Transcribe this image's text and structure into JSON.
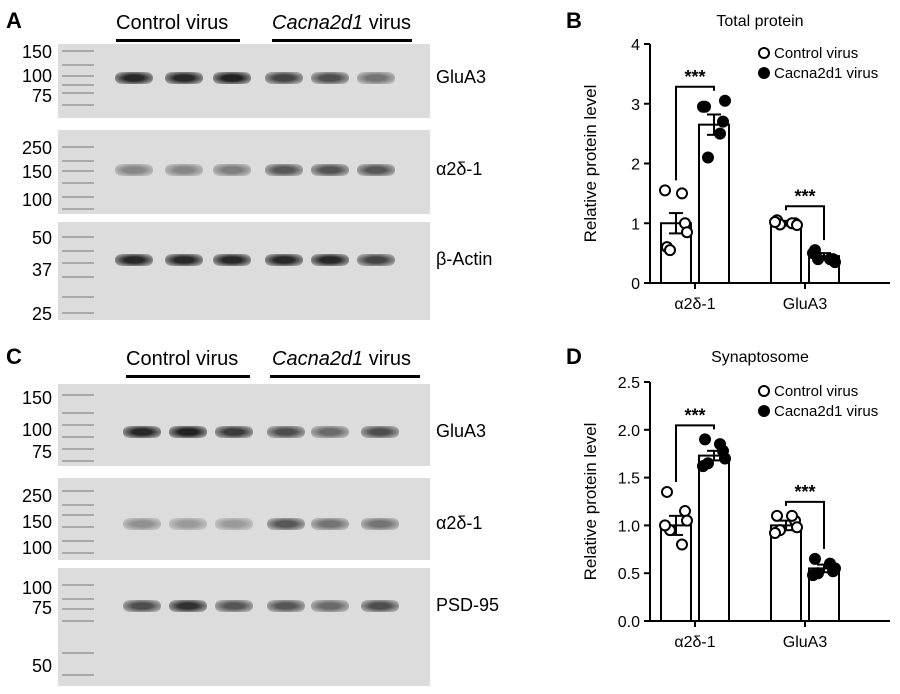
{
  "panels": {
    "A": "A",
    "B": "B",
    "C": "C",
    "D": "D"
  },
  "blots": [
    {
      "id": "A",
      "groups": [
        {
          "label": "Control virus",
          "italic": ""
        },
        {
          "label": " virus",
          "italic": "Cacna2d1"
        }
      ],
      "strips": [
        {
          "target": "GluA3",
          "markers": [
            "150",
            "100",
            "75"
          ],
          "intensity": [
            0.95,
            0.95,
            0.98,
            0.8,
            0.75,
            0.55
          ]
        },
        {
          "target": "α2δ-1",
          "markers": [
            "250",
            "150",
            "100"
          ],
          "intensity": [
            0.45,
            0.45,
            0.5,
            0.7,
            0.72,
            0.7
          ]
        },
        {
          "target": "β-Actin",
          "markers": [
            "50",
            "37",
            "25"
          ],
          "intensity": [
            0.95,
            0.95,
            0.95,
            0.95,
            0.95,
            0.8
          ]
        }
      ]
    },
    {
      "id": "C",
      "groups": [
        {
          "label": "Control virus",
          "italic": ""
        },
        {
          "label": " virus",
          "italic": "Cacna2d1"
        }
      ],
      "strips": [
        {
          "target": "GluA3",
          "markers": [
            "150",
            "100",
            "75"
          ],
          "intensity": [
            0.95,
            0.98,
            0.85,
            0.75,
            0.6,
            0.75
          ]
        },
        {
          "target": "α2δ-1",
          "markers": [
            "250",
            "150",
            "100"
          ],
          "intensity": [
            0.4,
            0.35,
            0.35,
            0.7,
            0.55,
            0.55
          ]
        },
        {
          "target": "PSD-95",
          "markers": [
            "100",
            "75",
            "50"
          ],
          "intensity": [
            0.75,
            0.9,
            0.7,
            0.7,
            0.6,
            0.75
          ]
        }
      ]
    }
  ],
  "chart_data": [
    {
      "type": "bar",
      "panel": "B",
      "title": "Total protein",
      "xlabel": "",
      "ylabel": "Relative protein level",
      "ylim": [
        0,
        4
      ],
      "yticks": [
        "0",
        "1",
        "2",
        "3",
        "4"
      ],
      "categories": [
        "α2δ-1",
        "GluA3"
      ],
      "series": [
        {
          "name": "Control virus",
          "marker": "open-circle",
          "values": [
            1.0,
            1.0
          ],
          "sem": [
            0.17,
            0.04
          ],
          "points": [
            [
              0.6,
              1.0,
              0.55,
              1.5,
              1.55,
              0.85
            ],
            [
              1.05,
              1.0,
              0.98,
              1.0,
              1.02,
              0.97
            ]
          ]
        },
        {
          "name": "Cacna2d1 virus",
          "marker": "filled-circle",
          "values": [
            2.65,
            0.45
          ],
          "sem": [
            0.17,
            0.05
          ],
          "points": [
            [
              2.95,
              2.7,
              2.1,
              2.5,
              2.95,
              3.05
            ],
            [
              0.55,
              0.4,
              0.4,
              0.4,
              0.5,
              0.35
            ]
          ]
        }
      ],
      "significance": [
        "***",
        "***"
      ],
      "legend": "top-right"
    },
    {
      "type": "bar",
      "panel": "D",
      "title": "Synaptosome",
      "xlabel": "",
      "ylabel": "Relative protein level",
      "ylim": [
        0,
        2.5
      ],
      "yticks": [
        "0.0",
        "0.5",
        "1.0",
        "1.5",
        "2.0",
        "2.5"
      ],
      "categories": [
        "α2δ-1",
        "GluA3"
      ],
      "series": [
        {
          "name": "Control virus",
          "marker": "open-circle",
          "values": [
            1.0,
            1.0
          ],
          "sem": [
            0.1,
            0.05
          ],
          "points": [
            [
              1.35,
              1.15,
              0.95,
              0.8,
              1.0,
              1.05
            ],
            [
              1.1,
              1.05,
              0.95,
              1.1,
              0.92,
              0.98
            ]
          ]
        },
        {
          "name": "Cacna2d1 virus",
          "marker": "filled-circle",
          "values": [
            1.73,
            0.55
          ],
          "sem": [
            0.05,
            0.04
          ],
          "points": [
            [
              1.9,
              1.78,
              1.65,
              1.85,
              1.62,
              1.7
            ],
            [
              0.65,
              0.52,
              0.5,
              0.6,
              0.48,
              0.55
            ]
          ]
        }
      ],
      "significance": [
        "***",
        "***"
      ],
      "legend": "top-right"
    }
  ]
}
